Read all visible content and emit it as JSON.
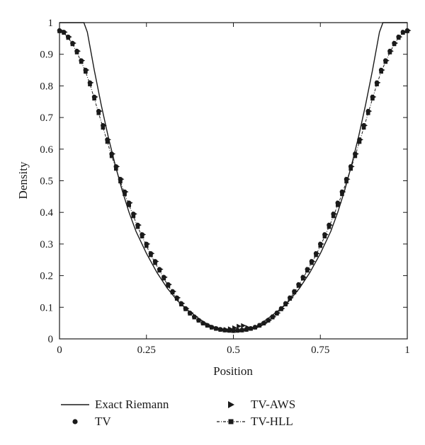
{
  "chart_data": {
    "type": "line",
    "xlabel": "Position",
    "ylabel": "Density",
    "xlim": [
      0,
      1
    ],
    "ylim": [
      0,
      1
    ],
    "x_ticks": [
      {
        "value": 0,
        "label": "0"
      },
      {
        "value": 0.25,
        "label": "0.25"
      },
      {
        "value": 0.5,
        "label": "0.5"
      },
      {
        "value": 0.75,
        "label": "0.75"
      },
      {
        "value": 1,
        "label": "1"
      }
    ],
    "y_ticks": [
      {
        "value": 0,
        "label": "0"
      },
      {
        "value": 0.1,
        "label": "0.1"
      },
      {
        "value": 0.2,
        "label": "0.2"
      },
      {
        "value": 0.3,
        "label": "0.3"
      },
      {
        "value": 0.4,
        "label": "0.4"
      },
      {
        "value": 0.5,
        "label": "0.5"
      },
      {
        "value": 0.6,
        "label": "0.6"
      },
      {
        "value": 0.7,
        "label": "0.7"
      },
      {
        "value": 0.8,
        "label": "0.8"
      },
      {
        "value": 0.9,
        "label": "0.9"
      },
      {
        "value": 1,
        "label": "1"
      }
    ],
    "grid": false,
    "legend_position": "bottom",
    "series": [
      {
        "name": "Exact Riemann",
        "style": "solid-line",
        "color": "#1a1a1a",
        "x": [
          0,
          0.07,
          0.08,
          0.1,
          0.12,
          0.14,
          0.16,
          0.18,
          0.2,
          0.22,
          0.25,
          0.28,
          0.31,
          0.34,
          0.37,
          0.4,
          0.43,
          0.46,
          0.5,
          0.54,
          0.57,
          0.6,
          0.63,
          0.66,
          0.69,
          0.72,
          0.75,
          0.78,
          0.8,
          0.82,
          0.84,
          0.86,
          0.88,
          0.9,
          0.92,
          0.93,
          1
        ],
        "y": [
          1,
          1,
          0.97,
          0.85,
          0.74,
          0.64,
          0.55,
          0.47,
          0.4,
          0.34,
          0.27,
          0.21,
          0.16,
          0.12,
          0.09,
          0.065,
          0.042,
          0.028,
          0.02,
          0.028,
          0.042,
          0.065,
          0.09,
          0.12,
          0.16,
          0.21,
          0.27,
          0.34,
          0.4,
          0.47,
          0.55,
          0.64,
          0.74,
          0.85,
          0.97,
          1,
          1
        ]
      },
      {
        "name": "TV",
        "style": "circle-markers",
        "color": "#1a1a1a",
        "x": [
          0.0,
          0.0125,
          0.025,
          0.0375,
          0.05,
          0.0625,
          0.075,
          0.0875,
          0.1,
          0.1125,
          0.125,
          0.1375,
          0.15,
          0.1625,
          0.175,
          0.1875,
          0.2,
          0.2125,
          0.225,
          0.2375,
          0.25,
          0.2625,
          0.275,
          0.2875,
          0.3,
          0.3125,
          0.325,
          0.3375,
          0.35,
          0.3625,
          0.375,
          0.3875,
          0.4,
          0.4125,
          0.425,
          0.4375,
          0.45,
          0.4625,
          0.475,
          0.4875,
          0.5,
          0.5125,
          0.525,
          0.5375,
          0.55,
          0.5625,
          0.575,
          0.5875,
          0.6,
          0.6125,
          0.625,
          0.6375,
          0.65,
          0.6625,
          0.675,
          0.6875,
          0.7,
          0.7125,
          0.725,
          0.7375,
          0.75,
          0.7625,
          0.775,
          0.7875,
          0.8,
          0.8125,
          0.825,
          0.8375,
          0.85,
          0.8625,
          0.875,
          0.8875,
          0.9,
          0.9125,
          0.925,
          0.9375,
          0.95,
          0.9625,
          0.975,
          0.9875,
          1.0
        ],
        "y": [
          0.975,
          0.97,
          0.955,
          0.935,
          0.91,
          0.88,
          0.85,
          0.81,
          0.765,
          0.72,
          0.675,
          0.63,
          0.585,
          0.545,
          0.505,
          0.465,
          0.43,
          0.395,
          0.36,
          0.33,
          0.3,
          0.27,
          0.245,
          0.22,
          0.195,
          0.172,
          0.15,
          0.13,
          0.112,
          0.096,
          0.082,
          0.07,
          0.059,
          0.05,
          0.043,
          0.037,
          0.033,
          0.03,
          0.028,
          0.027,
          0.027,
          0.027,
          0.028,
          0.03,
          0.033,
          0.037,
          0.043,
          0.05,
          0.059,
          0.07,
          0.082,
          0.096,
          0.112,
          0.13,
          0.15,
          0.172,
          0.195,
          0.22,
          0.245,
          0.27,
          0.3,
          0.33,
          0.36,
          0.395,
          0.43,
          0.465,
          0.505,
          0.545,
          0.585,
          0.63,
          0.675,
          0.72,
          0.765,
          0.81,
          0.85,
          0.88,
          0.91,
          0.935,
          0.955,
          0.97,
          0.975
        ]
      },
      {
        "name": "TV-AWS",
        "style": "triangle-markers",
        "color": "#1a1a1a",
        "x": [
          0.0,
          0.0125,
          0.025,
          0.0375,
          0.05,
          0.0625,
          0.075,
          0.0875,
          0.1,
          0.1125,
          0.125,
          0.1375,
          0.15,
          0.1625,
          0.175,
          0.1875,
          0.2,
          0.2125,
          0.225,
          0.2375,
          0.25,
          0.2625,
          0.275,
          0.2875,
          0.3,
          0.3125,
          0.325,
          0.3375,
          0.35,
          0.3625,
          0.375,
          0.3875,
          0.4,
          0.4125,
          0.425,
          0.4375,
          0.45,
          0.4625,
          0.475,
          0.4875,
          0.5,
          0.5125,
          0.525,
          0.5375,
          0.55,
          0.5625,
          0.575,
          0.5875,
          0.6,
          0.6125,
          0.625,
          0.6375,
          0.65,
          0.6625,
          0.675,
          0.6875,
          0.7,
          0.7125,
          0.725,
          0.7375,
          0.75,
          0.7625,
          0.775,
          0.7875,
          0.8,
          0.8125,
          0.825,
          0.8375,
          0.85,
          0.8625,
          0.875,
          0.8875,
          0.9,
          0.9125,
          0.925,
          0.9375,
          0.95,
          0.9625,
          0.975,
          0.9875,
          1.0
        ],
        "y": [
          0.975,
          0.97,
          0.955,
          0.935,
          0.91,
          0.88,
          0.85,
          0.81,
          0.765,
          0.72,
          0.675,
          0.63,
          0.585,
          0.545,
          0.505,
          0.465,
          0.43,
          0.395,
          0.36,
          0.33,
          0.3,
          0.27,
          0.245,
          0.22,
          0.195,
          0.172,
          0.15,
          0.13,
          0.112,
          0.096,
          0.082,
          0.07,
          0.059,
          0.05,
          0.043,
          0.037,
          0.033,
          0.03,
          0.03,
          0.032,
          0.035,
          0.04,
          0.042,
          0.036,
          0.033,
          0.037,
          0.043,
          0.05,
          0.059,
          0.07,
          0.082,
          0.096,
          0.112,
          0.13,
          0.15,
          0.172,
          0.195,
          0.22,
          0.245,
          0.27,
          0.3,
          0.33,
          0.36,
          0.395,
          0.43,
          0.465,
          0.505,
          0.545,
          0.585,
          0.63,
          0.675,
          0.72,
          0.765,
          0.81,
          0.85,
          0.88,
          0.91,
          0.935,
          0.955,
          0.97,
          0.975
        ]
      },
      {
        "name": "TV-HLL",
        "style": "dashdot-square-markers",
        "color": "#1a1a1a",
        "x": [
          0.0,
          0.0125,
          0.025,
          0.0375,
          0.05,
          0.0625,
          0.075,
          0.0875,
          0.1,
          0.1125,
          0.125,
          0.1375,
          0.15,
          0.1625,
          0.175,
          0.1875,
          0.2,
          0.2125,
          0.225,
          0.2375,
          0.25,
          0.2625,
          0.275,
          0.2875,
          0.3,
          0.3125,
          0.325,
          0.3375,
          0.35,
          0.3625,
          0.375,
          0.3875,
          0.4,
          0.4125,
          0.425,
          0.4375,
          0.45,
          0.4625,
          0.475,
          0.4875,
          0.5,
          0.5125,
          0.525,
          0.5375,
          0.55,
          0.5625,
          0.575,
          0.5875,
          0.6,
          0.6125,
          0.625,
          0.6375,
          0.65,
          0.6625,
          0.675,
          0.6875,
          0.7,
          0.7125,
          0.725,
          0.7375,
          0.75,
          0.7625,
          0.775,
          0.7875,
          0.8,
          0.8125,
          0.825,
          0.8375,
          0.85,
          0.8625,
          0.875,
          0.8875,
          0.9,
          0.9125,
          0.925,
          0.9375,
          0.95,
          0.9625,
          0.975,
          0.9875,
          1.0
        ],
        "y": [
          0.973,
          0.968,
          0.952,
          0.932,
          0.906,
          0.876,
          0.845,
          0.805,
          0.76,
          0.714,
          0.668,
          0.623,
          0.578,
          0.538,
          0.498,
          0.458,
          0.423,
          0.388,
          0.354,
          0.324,
          0.294,
          0.265,
          0.24,
          0.216,
          0.191,
          0.168,
          0.147,
          0.127,
          0.109,
          0.094,
          0.08,
          0.068,
          0.058,
          0.049,
          0.042,
          0.036,
          0.032,
          0.029,
          0.027,
          0.026,
          0.026,
          0.026,
          0.027,
          0.029,
          0.032,
          0.036,
          0.042,
          0.049,
          0.058,
          0.068,
          0.08,
          0.094,
          0.109,
          0.127,
          0.147,
          0.168,
          0.191,
          0.216,
          0.24,
          0.265,
          0.294,
          0.324,
          0.354,
          0.388,
          0.423,
          0.458,
          0.498,
          0.538,
          0.578,
          0.623,
          0.668,
          0.714,
          0.76,
          0.805,
          0.845,
          0.876,
          0.906,
          0.932,
          0.952,
          0.968,
          0.973
        ]
      }
    ]
  },
  "legend": [
    {
      "label": "Exact Riemann"
    },
    {
      "label": "TV-AWS"
    },
    {
      "label": "TV"
    },
    {
      "label": "TV-HLL"
    }
  ]
}
